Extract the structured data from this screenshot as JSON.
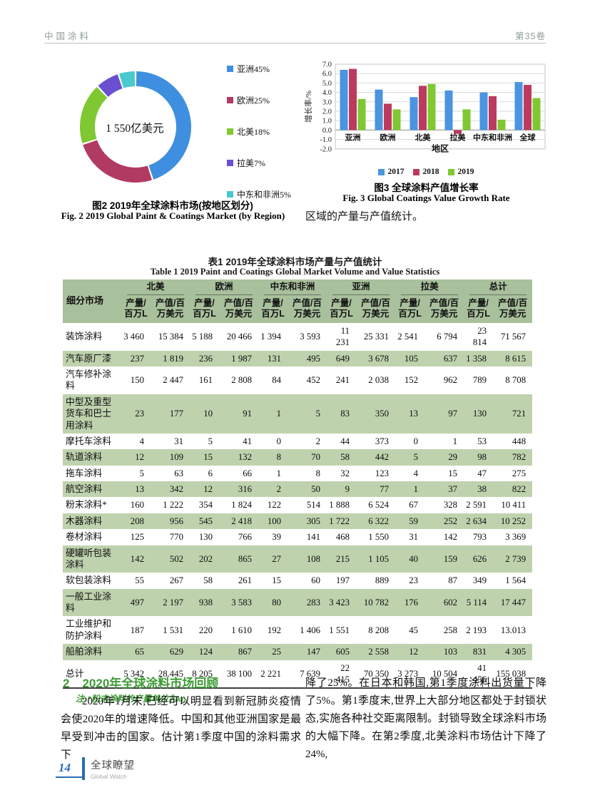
{
  "page_header": {
    "journal": "中国涂料",
    "volume": "第35卷"
  },
  "figure2": {
    "center_label": "1 550亿美元",
    "caption_cn": "图2  2019年全球涂料市场(按地区划分)",
    "caption_en": "Fig. 2  2019 Global Paint & Coatings Market (by Region)"
  },
  "figure3": {
    "caption_cn": "图3  全球涂料产值增长率",
    "caption_en": "Fig. 3  Global Coatings Value Growth Rate"
  },
  "lead_text": "区域的产量与产值统计。",
  "chart_data": [
    {
      "type": "pie",
      "subtype": "donut",
      "title": "2019年全球涂料市场(按地区划分)",
      "labels": [
        "亚洲",
        "欧洲",
        "北美",
        "拉美",
        "中东和非洲"
      ],
      "values": [
        45,
        25,
        18,
        7,
        5
      ],
      "colors": [
        "#3f8fe0",
        "#b13a63",
        "#7fc832",
        "#6a4fd1",
        "#49c8ce"
      ],
      "center_label": "1 550亿美元",
      "legend_position": "right"
    },
    {
      "type": "bar",
      "title": "全球涂料产值增长率",
      "categories": [
        "亚洲",
        "欧洲",
        "北美",
        "拉美",
        "中东和非洲",
        "全球"
      ],
      "series": [
        {
          "name": "2017",
          "values": [
            6.4,
            4.3,
            3.5,
            4.2,
            4.0,
            5.1
          ]
        },
        {
          "name": "2018",
          "values": [
            6.5,
            2.8,
            4.7,
            -0.4,
            3.6,
            4.8
          ]
        },
        {
          "name": "2019",
          "values": [
            3.3,
            2.2,
            4.9,
            2.2,
            1.1,
            3.4
          ]
        }
      ],
      "colors": [
        "#4a94e0",
        "#bc3a5e",
        "#7fc832"
      ],
      "xlabel": "地区",
      "ylabel": "增长率/%",
      "ylim": [
        -2.0,
        7.0
      ],
      "ytick_step": 1.0,
      "grid": true,
      "legend_position": "bottom"
    }
  ],
  "table1": {
    "title_cn": "表1  2019年全球涂料市场产量与产值统计",
    "title_en": "Table 1  2019 Paint and Coatings Global Market Volume and Value Statistics",
    "corner_header": "细分市场",
    "regions": [
      "北美",
      "欧洲",
      "中东和非洲",
      "亚洲",
      "拉美",
      "总计"
    ],
    "sub_headers": [
      "产量/百万L",
      "产值/百万美元"
    ],
    "rows": [
      {
        "label": "装饰涂料",
        "values": [
          "3 460",
          "15 384",
          "5 188",
          "20 466",
          "1 394",
          "3 593",
          "11 231",
          "25 331",
          "2 541",
          "6 794",
          "23 814",
          "71 567"
        ]
      },
      {
        "label": "汽车原厂漆",
        "values": [
          "237",
          "1 819",
          "236",
          "1 987",
          "131",
          "495",
          "649",
          "3 678",
          "105",
          "637",
          "1 358",
          "8 615"
        ]
      },
      {
        "label": "汽车修补涂料",
        "values": [
          "150",
          "2 447",
          "161",
          "2 808",
          "84",
          "452",
          "241",
          "2 038",
          "152",
          "962",
          "789",
          "8 708"
        ]
      },
      {
        "label": "中型及重型货车和巴士用涂料",
        "values": [
          "23",
          "177",
          "10",
          "91",
          "1",
          "5",
          "83",
          "350",
          "13",
          "97",
          "130",
          "721"
        ]
      },
      {
        "label": "摩托车涂料",
        "values": [
          "4",
          "31",
          "5",
          "41",
          "0",
          "2",
          "44",
          "373",
          "0",
          "1",
          "53",
          "448"
        ]
      },
      {
        "label": "轨道涂料",
        "values": [
          "12",
          "109",
          "15",
          "132",
          "8",
          "70",
          "58",
          "442",
          "5",
          "29",
          "98",
          "782"
        ]
      },
      {
        "label": "拖车涂料",
        "values": [
          "5",
          "63",
          "6",
          "66",
          "1",
          "8",
          "32",
          "123",
          "4",
          "15",
          "47",
          "275"
        ]
      },
      {
        "label": "航空涂料",
        "values": [
          "13",
          "342",
          "12",
          "316",
          "2",
          "50",
          "9",
          "77",
          "1",
          "37",
          "38",
          "822"
        ]
      },
      {
        "label": "粉末涂料*",
        "values": [
          "160",
          "1 222",
          "354",
          "1 824",
          "122",
          "514",
          "1 888",
          "6 524",
          "67",
          "328",
          "2 591",
          "10 411"
        ]
      },
      {
        "label": "木器涂料",
        "values": [
          "208",
          "956",
          "545",
          "2 418",
          "100",
          "305",
          "1 722",
          "6 322",
          "59",
          "252",
          "2 634",
          "10 252"
        ]
      },
      {
        "label": "卷材涂料",
        "values": [
          "125",
          "770",
          "130",
          "766",
          "39",
          "141",
          "468",
          "1 550",
          "31",
          "142",
          "793",
          "3 369"
        ]
      },
      {
        "label": "硬罐听包装涂料",
        "values": [
          "142",
          "502",
          "202",
          "865",
          "27",
          "108",
          "215",
          "1 105",
          "40",
          "159",
          "626",
          "2 739"
        ]
      },
      {
        "label": "软包装涂料",
        "values": [
          "55",
          "267",
          "58",
          "261",
          "15",
          "60",
          "197",
          "889",
          "23",
          "87",
          "349",
          "1 564"
        ]
      },
      {
        "label": "一般工业涂料",
        "values": [
          "497",
          "2 197",
          "938",
          "3 583",
          "80",
          "283",
          "3 423",
          "10 782",
          "176",
          "602",
          "5 114",
          "17 447"
        ]
      },
      {
        "label": "工业维护和防护涂料",
        "values": [
          "187",
          "1 531",
          "220",
          "1 610",
          "192",
          "1 406",
          "1 551",
          "8 208",
          "45",
          "258",
          "2 193",
          "13.013"
        ]
      },
      {
        "label": "船舶涂料",
        "values": [
          "65",
          "629",
          "124",
          "867",
          "25",
          "147",
          "605",
          "2 558",
          "12",
          "103",
          "831",
          "4 305"
        ]
      },
      {
        "label": "总计",
        "values": [
          "5 342",
          "28.445",
          "8 205",
          "38 100",
          "2 221",
          "7 639",
          "22 415",
          "70 350",
          "3 273",
          "10 504",
          "41 456",
          "155 038"
        ]
      }
    ],
    "note": "注:*粉末涂料的产量单位为kt。"
  },
  "section": {
    "number": "2",
    "title": "2020年全球涂料市场回顾"
  },
  "body": {
    "left_paragraph": "2020年1月末,已经可以明显看到新冠肺炎疫情会使2020年的增速降低。中国和其他亚洲国家是最早受到冲击的国家。估计第1季度中国的涂料需求下",
    "right_paragraph": "降了25%。在日本和韩国,第1季度涂料出货量下降了5%。第1季度末,世界上大部分地区都处于封锁状态,实施各种社交距离限制。封锁导致全球涂料市场的大幅下降。在第2季度,北美涂料市场估计下降了24%,"
  },
  "page_footer": {
    "page_number": "14",
    "brand_cn": "全球瞭望",
    "brand_en": "Global Watch"
  },
  "colors": {
    "accent_green": "#3d9b35",
    "table_header_bg": "#a9c09c",
    "table_stripe_bg": "#bfd2ae",
    "footer_blue": "#2a6cb5",
    "running_head_gray": "#8f9e95"
  }
}
